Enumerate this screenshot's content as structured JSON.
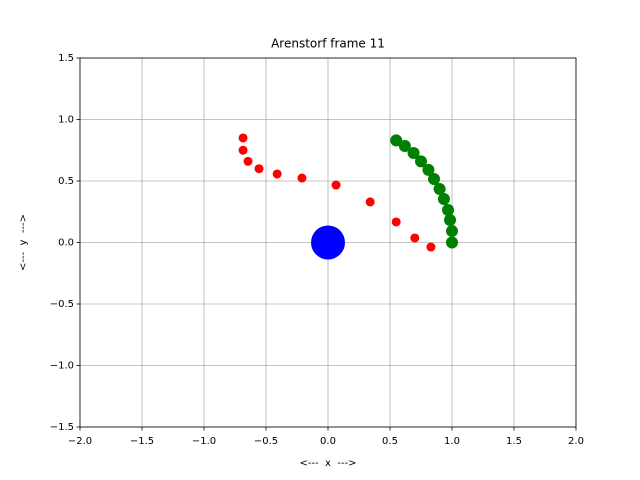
{
  "chart_data": {
    "type": "scatter",
    "title": "Arenstorf frame 11",
    "xlabel": "<---  x  --->",
    "ylabel": "<---  y  --->",
    "xlim": [
      -2,
      2
    ],
    "ylim": [
      -1.5,
      1.5
    ],
    "xticks": [
      {
        "value": -2,
        "label": "−2.0"
      },
      {
        "value": -1.5,
        "label": "−1.5"
      },
      {
        "value": -1,
        "label": "−1.0"
      },
      {
        "value": -0.5,
        "label": "−0.5"
      },
      {
        "value": 0,
        "label": "0.0"
      },
      0.5,
      {
        "value": 1,
        "label": "1.0"
      },
      1.5,
      {
        "value": 2,
        "label": "2.0"
      }
    ],
    "yticks": [
      {
        "value": -1.5,
        "label": "−1.5"
      },
      {
        "value": -1,
        "label": "−1.0"
      },
      {
        "value": -0.5,
        "label": "−0.5"
      },
      {
        "value": 0,
        "label": "0.0"
      },
      0.5,
      {
        "value": 1,
        "label": "1.0"
      },
      1.5
    ],
    "grid": true,
    "series": [
      {
        "color": "#ff0000",
        "marker_radius": 4.5,
        "x": [
          -0.685,
          -0.685,
          -0.645,
          -0.556,
          -0.41,
          -0.21,
          0.065,
          0.34,
          0.55,
          0.7,
          0.83,
          1.0
        ],
        "values": [
          0.85,
          0.75,
          0.66,
          0.6,
          0.557,
          0.524,
          0.467,
          0.33,
          0.167,
          0.037,
          -0.037,
          0.0
        ]
      },
      {
        "color": "#008000",
        "marker_radius": 6,
        "x": [
          0.55,
          0.62,
          0.69,
          0.75,
          0.81,
          0.855,
          0.9,
          0.935,
          0.968,
          0.984,
          1.0,
          1.0
        ],
        "values": [
          0.83,
          0.785,
          0.728,
          0.66,
          0.59,
          0.516,
          0.435,
          0.354,
          0.264,
          0.183,
          0.093,
          0.0
        ]
      },
      {
        "color": "#0000ff",
        "marker_radius": 17,
        "x": [
          0
        ],
        "values": [
          0
        ]
      }
    ]
  }
}
